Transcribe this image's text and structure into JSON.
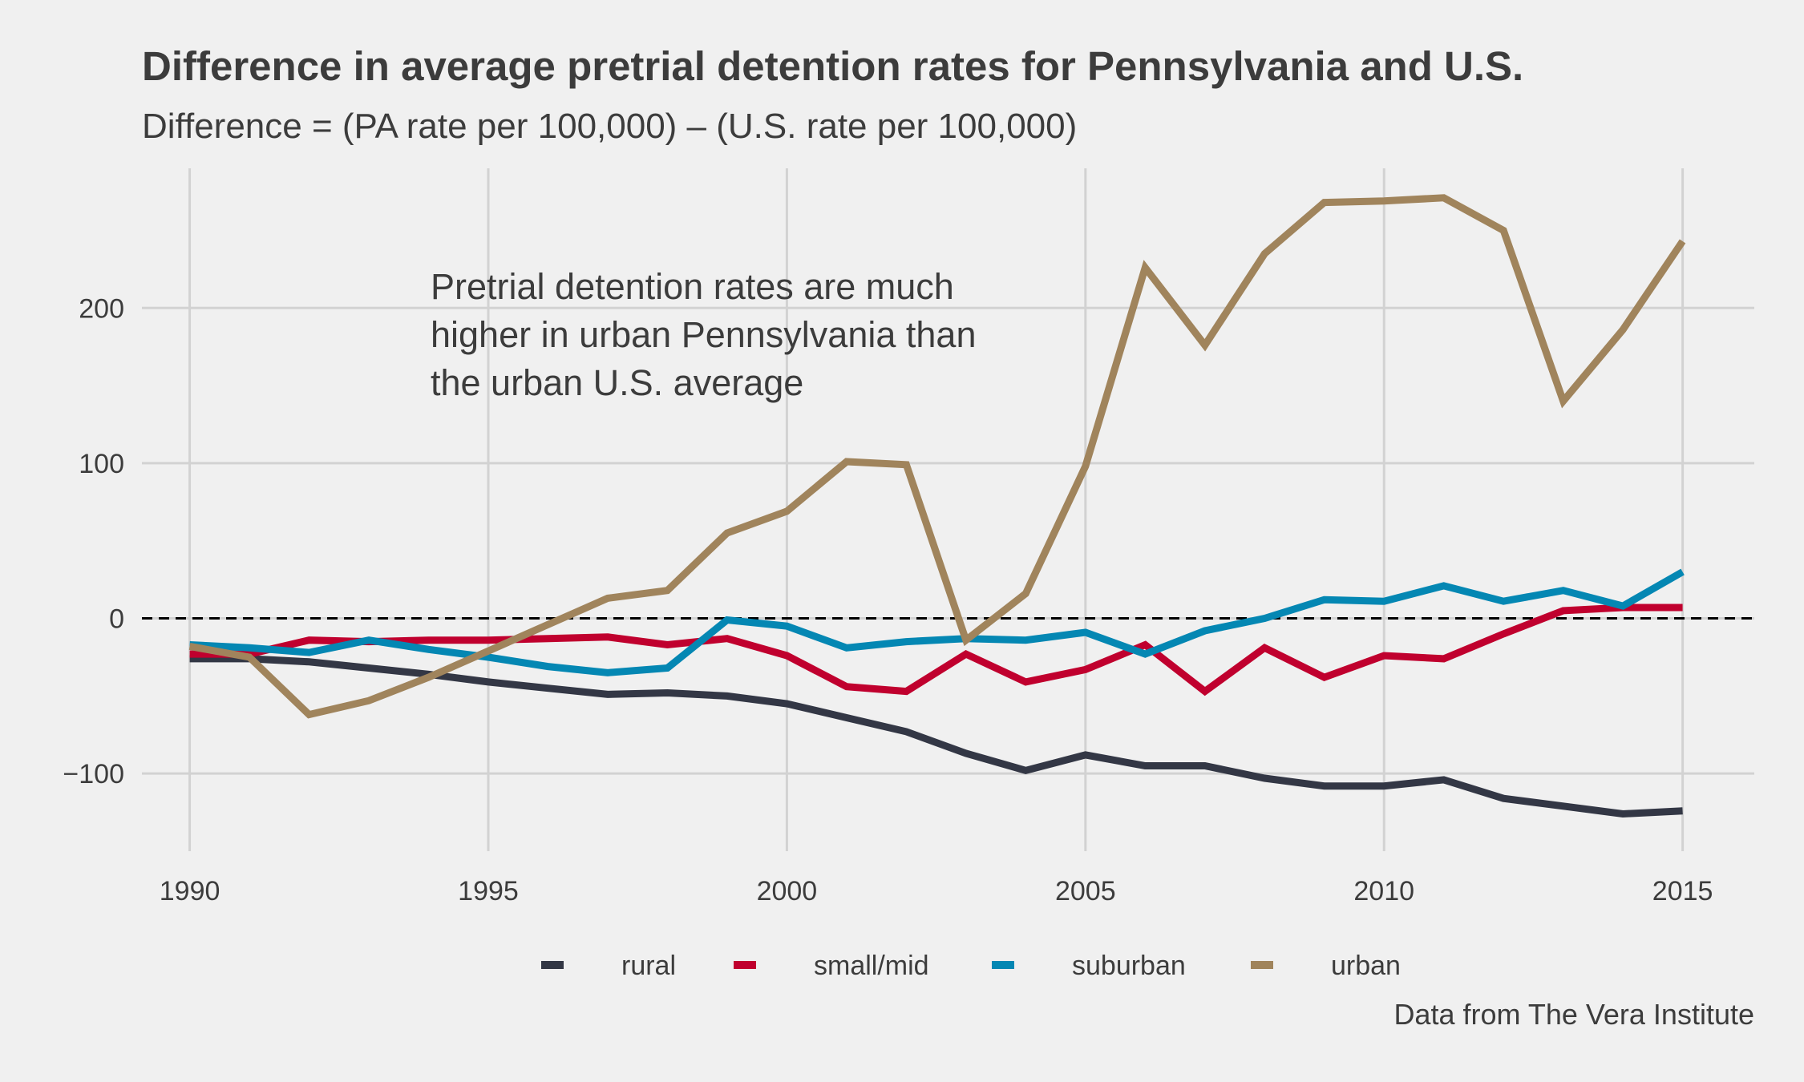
{
  "chart_data": {
    "type": "line",
    "title": "Difference in average pretrial detention rates for Pennsylvania and U.S.",
    "subtitle": "Difference = (PA rate per 100,000) – (U.S. rate per 100,000)",
    "caption": "Data from The Vera Institute",
    "annotation": [
      "Pretrial detention rates are much",
      "higher in urban Pennsylvania than",
      "the urban U.S. average"
    ],
    "xlabel": "",
    "ylabel": "",
    "xlim": [
      1989.2,
      2016.2
    ],
    "ylim": [
      -150,
      290
    ],
    "x_ticks": [
      1990,
      1995,
      2000,
      2005,
      2010,
      2015
    ],
    "x_tick_labels": [
      "1990",
      "1995",
      "2000",
      "2005",
      "2010",
      "2015"
    ],
    "y_ticks": [
      -100,
      0,
      100,
      200
    ],
    "y_tick_labels": [
      "−100",
      "0",
      "100",
      "200"
    ],
    "reference_line": 0,
    "grid": true,
    "legend_position": "bottom",
    "x": [
      1990,
      1991,
      1992,
      1993,
      1994,
      1995,
      1996,
      1997,
      1998,
      1999,
      2000,
      2001,
      2002,
      2003,
      2004,
      2005,
      2006,
      2007,
      2008,
      2009,
      2010,
      2011,
      2012,
      2013,
      2014,
      2015
    ],
    "series": [
      {
        "name": "rural",
        "color": "#333745",
        "values": [
          -26,
          -26,
          -28,
          -32,
          -36,
          -41,
          -45,
          -49,
          -48,
          -50,
          -55,
          -64,
          -73,
          -87,
          -98,
          -88,
          -95,
          -95,
          -103,
          -108,
          -108,
          -104,
          -116,
          -121,
          -126,
          -124
        ]
      },
      {
        "name": "small/mid",
        "color": "#c0002e",
        "values": [
          -23,
          -23,
          -14,
          -15,
          -14,
          -14,
          -13,
          -12,
          -17,
          -13,
          -24,
          -44,
          -47,
          -23,
          -41,
          -33,
          -17,
          -47,
          -19,
          -38,
          -24,
          -26,
          -10,
          5,
          7,
          7
        ]
      },
      {
        "name": "suburban",
        "color": "#0487b3",
        "values": [
          -17,
          -19,
          -22,
          -14,
          -20,
          -25,
          -31,
          -35,
          -32,
          -1,
          -5,
          -19,
          -15,
          -13,
          -14,
          -9,
          -23,
          -8,
          0,
          12,
          11,
          21,
          11,
          18,
          8,
          30
        ]
      },
      {
        "name": "urban",
        "color": "#a0845c",
        "values": [
          -18,
          -25,
          -62,
          -53,
          -38,
          -21,
          -4,
          13,
          18,
          55,
          69,
          101,
          99,
          -14,
          16,
          98,
          226,
          176,
          235,
          268,
          269,
          271,
          250,
          140,
          186,
          243
        ]
      }
    ]
  }
}
